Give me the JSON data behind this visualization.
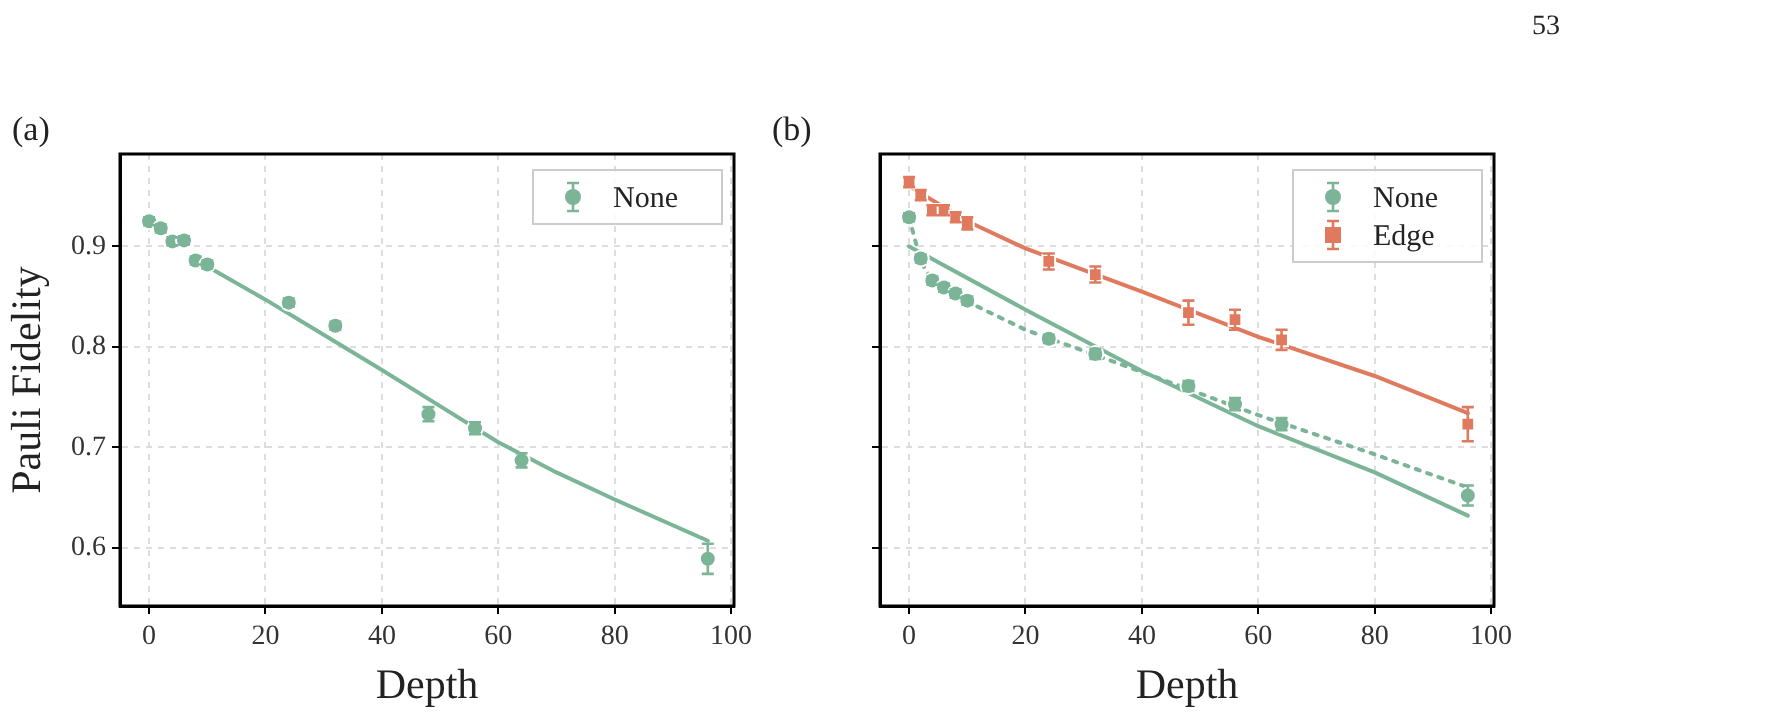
{
  "chart_data": [
    {
      "type": "scatter",
      "xlabel": "Depth",
      "ylabel": "Pauli Fidelity",
      "annotations": [
        "(a)"
      ],
      "xlim": [
        -5,
        100.5
      ],
      "ylim": [
        0.542,
        0.992
      ],
      "xticks": [
        0,
        20,
        40,
        60,
        80,
        100
      ],
      "yticks": [
        0.6,
        0.7,
        0.8,
        0.9
      ],
      "grid": true,
      "legend": "top right",
      "series": [
        {
          "name": "None",
          "marker": "circle",
          "color": "#7bb497",
          "x": [
            0,
            2,
            4,
            6,
            8,
            10,
            24,
            32,
            48,
            56,
            64,
            96
          ],
          "values": [
            0.925,
            0.918,
            0.905,
            0.906,
            0.886,
            0.882,
            0.844,
            0.821,
            0.733,
            0.719,
            0.687,
            0.589
          ],
          "errors": [
            0.004,
            0.004,
            0.004,
            0.004,
            0.004,
            0.004,
            0.004,
            0.004,
            0.007,
            0.006,
            0.007,
            0.015
          ]
        },
        {
          "type": "line",
          "line_style": "solid",
          "marker": "none",
          "color": "#7bb497",
          "x": [
            10,
            20,
            30,
            40,
            50,
            60,
            70,
            80,
            96
          ],
          "values": [
            0.88,
            0.847,
            0.812,
            0.777,
            0.741,
            0.705,
            0.675,
            0.648,
            0.607
          ]
        }
      ]
    },
    {
      "type": "scatter",
      "xlabel": "Depth",
      "annotations": [
        "(b)",
        "53"
      ],
      "xlim": [
        -5,
        100.5
      ],
      "ylim": [
        0.542,
        0.992
      ],
      "xticks": [
        0,
        20,
        40,
        60,
        80,
        100
      ],
      "yticks": [
        0.6,
        0.7,
        0.8,
        0.9
      ],
      "grid": true,
      "legend": "top right",
      "tick_labels": "x",
      "series": [
        {
          "name": "None",
          "marker": "circle",
          "color": "#7bb497",
          "x": [
            0,
            2,
            4,
            6,
            8,
            10,
            24,
            32,
            48,
            56,
            64,
            96
          ],
          "values": [
            0.929,
            0.888,
            0.866,
            0.859,
            0.853,
            0.846,
            0.808,
            0.793,
            0.761,
            0.743,
            0.723,
            0.652
          ],
          "errors": [
            0.004,
            0.004,
            0.004,
            0.004,
            0.004,
            0.004,
            0.004,
            0.005,
            0.005,
            0.006,
            0.006,
            0.01
          ]
        },
        {
          "name": "Edge",
          "marker": "square",
          "color": "#e07a5f",
          "x": [
            0,
            2,
            4,
            6,
            8,
            10,
            24,
            32,
            48,
            56,
            64,
            96
          ],
          "values": [
            0.964,
            0.951,
            0.936,
            0.936,
            0.929,
            0.923,
            0.885,
            0.872,
            0.834,
            0.827,
            0.807,
            0.723
          ],
          "errors": [
            0.005,
            0.005,
            0.005,
            0.005,
            0.005,
            0.006,
            0.008,
            0.008,
            0.012,
            0.01,
            0.01,
            0.017
          ]
        },
        {
          "type": "line",
          "line_style": "solid",
          "marker": "none",
          "color": "#7bb497",
          "x": [
            0,
            20,
            40,
            60,
            80,
            96
          ],
          "values": [
            0.9,
            0.837,
            0.776,
            0.721,
            0.675,
            0.632
          ]
        },
        {
          "type": "line",
          "line_style": "dotted",
          "marker": "none",
          "color": "#7bb497",
          "x": [
            0,
            2,
            4,
            10,
            20,
            40,
            60,
            80,
            96
          ],
          "values": [
            0.929,
            0.885,
            0.866,
            0.845,
            0.817,
            0.775,
            0.732,
            0.693,
            0.66
          ]
        },
        {
          "type": "line",
          "line_style": "solid",
          "marker": "none",
          "color": "#e07a5f",
          "x": [
            0,
            10,
            20,
            40,
            60,
            80,
            96
          ],
          "values": [
            0.96,
            0.925,
            0.898,
            0.855,
            0.81,
            0.771,
            0.734
          ]
        }
      ]
    }
  ]
}
